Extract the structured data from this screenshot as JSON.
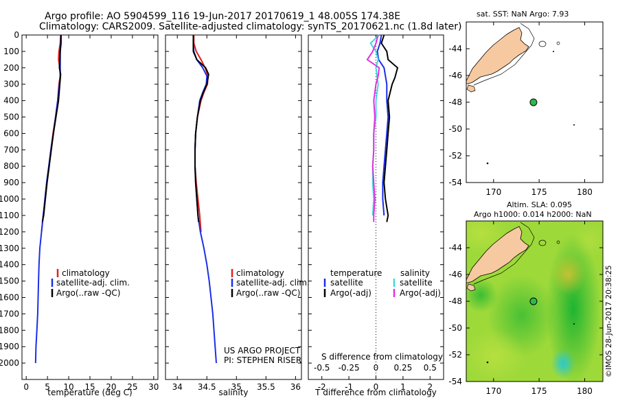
{
  "header": {
    "title_line1": "Argo profile: AO 5904599_116 19-Jun-2017 20170619_1 48.005S 174.38E",
    "title_line2": "Climatology: CARS2009. Satellite-adjusted climatology: synTS_20170621.nc (1.8d later)"
  },
  "colors": {
    "climatology": "#e0201a",
    "satellite": "#1a2ee8",
    "argo": "#000000",
    "sat_salinity": "#3fd8e0",
    "argo_salinity": "#e030e0",
    "land": "#f6c9a0",
    "marker": "#2fb84a"
  },
  "chart_data": [
    {
      "type": "line",
      "xlabel": "temperature (deg C)",
      "ylabel": "",
      "xlim": [
        -1,
        31
      ],
      "ylim": [
        0,
        2100
      ],
      "y_inverted": true,
      "xticks": [
        "0",
        "5",
        "10",
        "15",
        "20",
        "25",
        "30"
      ],
      "xtick_values": [
        0,
        5,
        10,
        15,
        20,
        25,
        30
      ],
      "yticks": [
        "0",
        "100",
        "200",
        "300",
        "400",
        "500",
        "600",
        "700",
        "800",
        "900",
        "1000",
        "1100",
        "1200",
        "1300",
        "1400",
        "1500",
        "1600",
        "1700",
        "1800",
        "1900",
        "2000"
      ],
      "ytick_values": [
        0,
        100,
        200,
        300,
        400,
        500,
        600,
        700,
        800,
        900,
        1000,
        1100,
        1200,
        1300,
        1400,
        1500,
        1600,
        1700,
        1800,
        1900,
        2000
      ],
      "legend": [
        "climatology",
        "satellite-adj. clim.",
        "Argo(..raw -QC)"
      ],
      "series": [
        {
          "name": "climatology",
          "color_key": "climatology",
          "points": [
            [
              8.1,
              0
            ],
            [
              8.0,
              50
            ],
            [
              7.7,
              100
            ],
            [
              7.6,
              150
            ],
            [
              7.9,
              200
            ],
            [
              8.0,
              250
            ],
            [
              7.7,
              300
            ],
            [
              7.4,
              400
            ],
            [
              6.9,
              500
            ],
            [
              6.3,
              600
            ],
            [
              5.8,
              700
            ],
            [
              5.4,
              800
            ],
            [
              4.9,
              900
            ],
            [
              4.5,
              1000
            ],
            [
              4.0,
              1100
            ],
            [
              3.6,
              1200
            ]
          ]
        },
        {
          "name": "satellite-adj. clim.",
          "color_key": "satellite",
          "points": [
            [
              8.2,
              0
            ],
            [
              8.1,
              50
            ],
            [
              8.0,
              100
            ],
            [
              8.0,
              150
            ],
            [
              8.0,
              200
            ],
            [
              8.0,
              250
            ],
            [
              7.8,
              300
            ],
            [
              7.4,
              400
            ],
            [
              6.9,
              500
            ],
            [
              6.4,
              600
            ],
            [
              5.8,
              700
            ],
            [
              5.3,
              800
            ],
            [
              4.8,
              900
            ],
            [
              4.4,
              1000
            ],
            [
              4.0,
              1100
            ],
            [
              3.6,
              1200
            ],
            [
              3.2,
              1300
            ],
            [
              3.0,
              1400
            ],
            [
              2.9,
              1500
            ],
            [
              2.8,
              1600
            ],
            [
              2.7,
              1700
            ],
            [
              2.5,
              1800
            ],
            [
              2.3,
              1900
            ],
            [
              2.2,
              2000
            ]
          ]
        },
        {
          "name": "Argo(..raw -QC)",
          "color_key": "argo",
          "points": [
            [
              8.2,
              0
            ],
            [
              8.2,
              50
            ],
            [
              8.0,
              100
            ],
            [
              7.9,
              150
            ],
            [
              7.8,
              200
            ],
            [
              8.1,
              240
            ],
            [
              7.9,
              300
            ],
            [
              7.6,
              400
            ],
            [
              7.0,
              500
            ],
            [
              6.4,
              600
            ],
            [
              5.9,
              700
            ],
            [
              5.4,
              800
            ],
            [
              4.9,
              900
            ],
            [
              4.5,
              1000
            ],
            [
              4.1,
              1100
            ],
            [
              3.8,
              1140
            ]
          ]
        }
      ]
    },
    {
      "type": "line",
      "xlabel": "salinity",
      "ylabel": "",
      "xlim": [
        33.8,
        36.1
      ],
      "ylim": [
        0,
        2100
      ],
      "y_inverted": true,
      "xticks": [
        "34",
        "34.5",
        "35",
        "35.5",
        "36"
      ],
      "xtick_values": [
        34,
        34.5,
        35,
        35.5,
        36
      ],
      "legend": [
        "climatology",
        "satellite-adj. clim.",
        "Argo(..raw -QC)"
      ],
      "annotations": [
        "US ARGO PROJECT",
        "PI: STEPHEN RISER"
      ],
      "series": [
        {
          "name": "climatology",
          "color_key": "climatology",
          "points": [
            [
              34.28,
              0
            ],
            [
              34.28,
              50
            ],
            [
              34.32,
              100
            ],
            [
              34.4,
              150
            ],
            [
              34.47,
              200
            ],
            [
              34.52,
              250
            ],
            [
              34.51,
              300
            ],
            [
              34.45,
              350
            ],
            [
              34.4,
              400
            ],
            [
              34.34,
              500
            ],
            [
              34.31,
              600
            ],
            [
              34.3,
              700
            ],
            [
              34.3,
              800
            ],
            [
              34.32,
              900
            ],
            [
              34.35,
              1000
            ],
            [
              34.38,
              1100
            ],
            [
              34.4,
              1200
            ]
          ]
        },
        {
          "name": "satellite-adj. clim.",
          "color_key": "satellite",
          "points": [
            [
              34.27,
              0
            ],
            [
              34.27,
              50
            ],
            [
              34.28,
              100
            ],
            [
              34.33,
              150
            ],
            [
              34.43,
              200
            ],
            [
              34.5,
              250
            ],
            [
              34.49,
              300
            ],
            [
              34.43,
              350
            ],
            [
              34.38,
              400
            ],
            [
              34.34,
              500
            ],
            [
              34.31,
              600
            ],
            [
              34.3,
              700
            ],
            [
              34.3,
              800
            ],
            [
              34.31,
              900
            ],
            [
              34.33,
              1000
            ],
            [
              34.35,
              1100
            ],
            [
              34.39,
              1200
            ],
            [
              34.45,
              1300
            ],
            [
              34.5,
              1400
            ],
            [
              34.54,
              1500
            ],
            [
              34.57,
              1600
            ],
            [
              34.6,
              1700
            ],
            [
              34.62,
              1800
            ],
            [
              34.64,
              1900
            ],
            [
              34.66,
              2000
            ]
          ]
        },
        {
          "name": "Argo(..raw -QC)",
          "color_key": "argo",
          "points": [
            [
              34.27,
              0
            ],
            [
              34.27,
              50
            ],
            [
              34.27,
              100
            ],
            [
              34.33,
              150
            ],
            [
              34.48,
              200
            ],
            [
              34.53,
              240
            ],
            [
              34.5,
              300
            ],
            [
              34.44,
              350
            ],
            [
              34.39,
              400
            ],
            [
              34.34,
              500
            ],
            [
              34.31,
              600
            ],
            [
              34.3,
              700
            ],
            [
              34.3,
              800
            ],
            [
              34.31,
              900
            ],
            [
              34.33,
              1000
            ],
            [
              34.35,
              1100
            ],
            [
              34.36,
              1140
            ]
          ]
        }
      ]
    },
    {
      "type": "line",
      "xlabel": "T difference from climatology",
      "xlabel2": "S difference from climatology",
      "ylabel": "",
      "xlim": [
        -2.5,
        2.5
      ],
      "x2lim": [
        -0.625,
        0.625
      ],
      "ylim": [
        0,
        2100
      ],
      "y_inverted": true,
      "xticks": [
        "-2",
        "-1",
        "0",
        "1",
        "2"
      ],
      "xtick_values": [
        -2,
        -1,
        0,
        1,
        2
      ],
      "x2ticks": [
        "-0.5",
        "-0.25",
        "0",
        "0.25",
        "0.5"
      ],
      "x2tick_values": [
        -0.5,
        -0.25,
        0,
        0.25,
        0.5
      ],
      "legend_temperature": {
        "heading": "temperature",
        "items": [
          "satellite",
          "Argo(-adj)"
        ]
      },
      "legend_salinity": {
        "heading": "salinity",
        "items": [
          "satellite",
          "Argo(-adj)"
        ]
      },
      "series": [
        {
          "name": "temperature satellite",
          "color_key": "satellite",
          "axis": "T",
          "points": [
            [
              0.2,
              0
            ],
            [
              0.15,
              50
            ],
            [
              0.05,
              100
            ],
            [
              0.1,
              150
            ],
            [
              0.3,
              200
            ],
            [
              0.4,
              300
            ],
            [
              0.4,
              400
            ],
            [
              0.45,
              500
            ],
            [
              0.4,
              600
            ],
            [
              0.35,
              700
            ],
            [
              0.3,
              800
            ],
            [
              0.25,
              900
            ],
            [
              0.25,
              1000
            ],
            [
              0.3,
              1100
            ]
          ]
        },
        {
          "name": "temperature Argo(-adj)",
          "color_key": "argo",
          "axis": "T",
          "points": [
            [
              0.3,
              0
            ],
            [
              0.2,
              50
            ],
            [
              0.4,
              100
            ],
            [
              0.45,
              150
            ],
            [
              0.8,
              200
            ],
            [
              0.7,
              260
            ],
            [
              0.6,
              300
            ],
            [
              0.45,
              400
            ],
            [
              0.5,
              500
            ],
            [
              0.45,
              600
            ],
            [
              0.4,
              700
            ],
            [
              0.35,
              800
            ],
            [
              0.3,
              900
            ],
            [
              0.35,
              1000
            ],
            [
              0.45,
              1100
            ],
            [
              0.4,
              1140
            ]
          ]
        },
        {
          "name": "salinity satellite",
          "color_key": "sat_salinity",
          "axis": "S",
          "points": [
            [
              0.03,
              0
            ],
            [
              -0.05,
              50
            ],
            [
              0.0,
              100
            ],
            [
              0.02,
              150
            ],
            [
              0.0,
              200
            ],
            [
              0.02,
              300
            ],
            [
              0.0,
              400
            ],
            [
              0.0,
              500
            ],
            [
              -0.02,
              600
            ],
            [
              -0.02,
              700
            ],
            [
              -0.03,
              800
            ],
            [
              -0.03,
              900
            ],
            [
              -0.02,
              1000
            ],
            [
              -0.03,
              1100
            ]
          ]
        },
        {
          "name": "salinity Argo(-adj)",
          "color_key": "argo_salinity",
          "axis": "S",
          "points": [
            [
              0.02,
              0
            ],
            [
              0.0,
              50
            ],
            [
              -0.03,
              100
            ],
            [
              -0.08,
              150
            ],
            [
              0.03,
              200
            ],
            [
              0.02,
              250
            ],
            [
              0.0,
              300
            ],
            [
              -0.02,
              400
            ],
            [
              -0.01,
              500
            ],
            [
              -0.02,
              600
            ],
            [
              -0.02,
              700
            ],
            [
              -0.03,
              800
            ],
            [
              -0.02,
              900
            ],
            [
              -0.01,
              1000
            ],
            [
              -0.02,
              1100
            ],
            [
              -0.02,
              1140
            ]
          ]
        }
      ]
    },
    {
      "type": "map",
      "title": "sat. SST: NaN Argo: 7.93",
      "xlim": [
        167,
        182
      ],
      "ylim": [
        -54,
        -42
      ],
      "xticks": [
        "170",
        "175",
        "180"
      ],
      "xtick_values": [
        170,
        175,
        180
      ],
      "yticks": [
        "-44",
        "-46",
        "-48",
        "-50",
        "-52",
        "-54"
      ],
      "ytick_values": [
        -44,
        -46,
        -48,
        -50,
        -52,
        -54
      ],
      "argo_position": [
        174.38,
        -48.005
      ]
    },
    {
      "type": "heatmap",
      "title_line1": "Altim. SLA: 0.095",
      "title_line2": "Argo h1000: 0.014 h2000: NaN",
      "xlim": [
        167,
        182
      ],
      "ylim": [
        -54,
        -42
      ],
      "xticks": [
        "170",
        "175",
        "180"
      ],
      "xtick_values": [
        170,
        175,
        180
      ],
      "yticks": [
        "-44",
        "-46",
        "-48",
        "-50",
        "-52",
        "-54"
      ],
      "ytick_values": [
        -44,
        -46,
        -48,
        -50,
        -52,
        -54
      ],
      "argo_position": [
        174.38,
        -48.005
      ]
    }
  ],
  "footer": {
    "credit": "©IMOS 28-Jun-2017 20:38:25"
  }
}
